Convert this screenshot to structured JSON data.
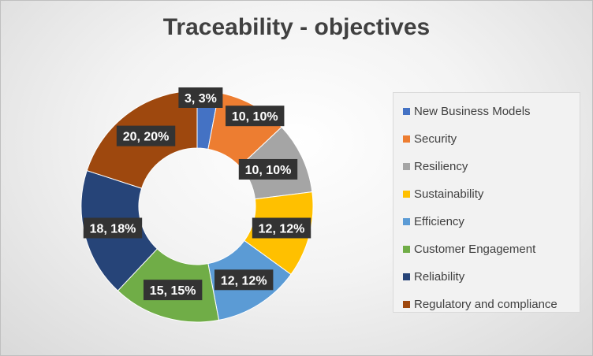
{
  "chart_data": {
    "type": "pie",
    "title": "Traceability - objectives",
    "legend_position": "right",
    "categories": [
      "New Business Models",
      "Security",
      "Resiliency",
      "Sustainability",
      "Efficiency",
      "Customer Engagement",
      "Reliability",
      "Regulatory and compliance"
    ],
    "values": [
      3,
      10,
      10,
      12,
      12,
      15,
      18,
      20
    ],
    "labels": [
      "3, 3%",
      "10, 10%",
      "10, 10%",
      "12, 12%",
      "12, 12%",
      "15, 15%",
      "18, 18%",
      "20, 20%"
    ],
    "colors": [
      "#4472c4",
      "#ed7d31",
      "#a5a5a5",
      "#ffc000",
      "#5b9bd5",
      "#70ad47",
      "#264478",
      "#9e480e"
    ]
  }
}
